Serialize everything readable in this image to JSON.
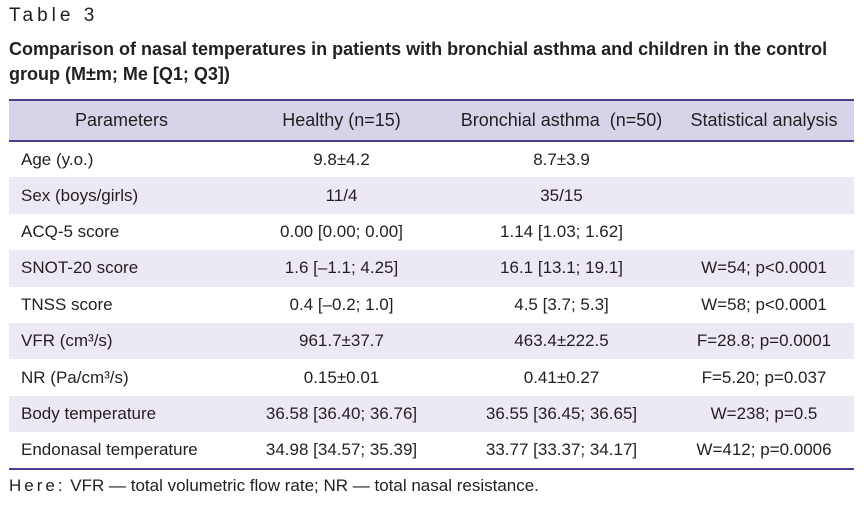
{
  "table_label": "Table 3",
  "caption": "Comparison of nasal temperatures in patients with bronchial asthma and children in the control group (M±m; Me [Q1; Q3])",
  "headers": [
    "Parameters",
    "Healthy (n=15)",
    "Bronchial asthma  (n=50)",
    "Statistical analysis"
  ],
  "rows": [
    [
      "Age (y.o.)",
      "9.8±4.2",
      "8.7±3.9",
      ""
    ],
    [
      "Sex (boys/girls)",
      "11/4",
      "35/15",
      ""
    ],
    [
      "ACQ-5 score",
      "0.00 [0.00; 0.00]",
      "1.14 [1.03; 1.62]",
      ""
    ],
    [
      "SNOT-20 score",
      "1.6 [–1.1; 4.25]",
      "16.1 [13.1; 19.1]",
      "W=54; p<0.0001"
    ],
    [
      "TNSS score",
      "0.4 [–0.2; 1.0]",
      "4.5 [3.7; 5.3]",
      "W=58; p<0.0001"
    ],
    [
      "VFR (cm³/s)",
      "961.7±37.7",
      "463.4±222.5",
      "F=28.8; p=0.0001"
    ],
    [
      "NR (Pa/cm³/s)",
      "0.15±0.01",
      "0.41±0.27",
      "F=5.20; p=0.037"
    ],
    [
      "Body temperature",
      "36.58 [36.40; 36.76]",
      "36.55 [36.45; 36.65]",
      "W=238; p=0.5"
    ],
    [
      "Endonasal temperature",
      "34.98 [34.57; 35.39]",
      "33.77 [33.37; 34.17]",
      "W=412; p=0.0006"
    ]
  ],
  "note": {
    "lead": "Here:",
    "text": " VFR — total volumetric flow rate; NR — total nasal resistance."
  },
  "colors": {
    "header_bg": "#d7d4ea",
    "stripe_bg": "#ece9f5",
    "rule": "#4d3f8f"
  }
}
